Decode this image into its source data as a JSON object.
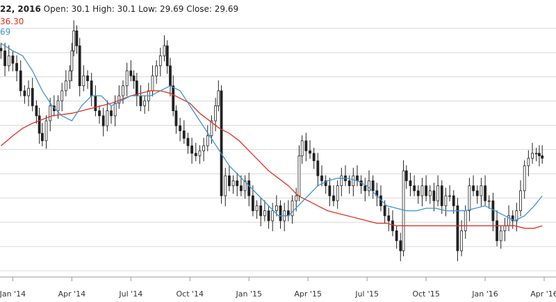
{
  "header": {
    "date_fragment": "22, 2016",
    "open_label": "Open:",
    "open": "30.1",
    "high_label": "High:",
    "high": "30.1",
    "low_label": "Low:",
    "low": "29.69",
    "close_label": "Close:",
    "close": "29.69"
  },
  "ma_labels": {
    "long": "36.30",
    "short": "69"
  },
  "colors": {
    "long_ma": "#e0301e",
    "short_ma": "#3b93d1",
    "candle": "#222222",
    "grid": "#d8d8d8"
  },
  "chart_data": {
    "type": "candlestick",
    "x_tick_labels": [
      "Jan '14",
      "Apr '14",
      "Jul '14",
      "Oct '14",
      "Jan '15",
      "Apr '15",
      "Jul '15",
      "Oct '15",
      "Jan '16",
      "Apr '16"
    ],
    "x_tick_months": [
      0,
      3,
      6,
      9,
      12,
      15,
      18,
      21,
      24,
      27
    ],
    "x_range_months": [
      -0.65,
      27.6
    ],
    "y_range": [
      0,
      100
    ],
    "grid": true,
    "close_series": [
      [
        -0.6,
        88
      ],
      [
        -0.4,
        82
      ],
      [
        -0.2,
        86
      ],
      [
        0.0,
        83
      ],
      [
        0.2,
        80
      ],
      [
        0.4,
        72
      ],
      [
        0.6,
        70
      ],
      [
        0.8,
        73
      ],
      [
        1.0,
        66
      ],
      [
        1.2,
        62
      ],
      [
        1.35,
        55
      ],
      [
        1.5,
        52
      ],
      [
        1.7,
        60
      ],
      [
        1.9,
        66
      ],
      [
        2.1,
        64
      ],
      [
        2.3,
        68
      ],
      [
        2.5,
        72
      ],
      [
        2.7,
        76
      ],
      [
        2.9,
        80
      ],
      [
        3.0,
        88
      ],
      [
        3.1,
        96
      ],
      [
        3.25,
        90
      ],
      [
        3.4,
        74
      ],
      [
        3.6,
        78
      ],
      [
        3.8,
        76
      ],
      [
        4.0,
        70
      ],
      [
        4.2,
        64
      ],
      [
        4.4,
        62
      ],
      [
        4.6,
        58
      ],
      [
        4.8,
        64
      ],
      [
        5.0,
        62
      ],
      [
        5.2,
        67
      ],
      [
        5.4,
        70
      ],
      [
        5.6,
        74
      ],
      [
        5.8,
        80
      ],
      [
        6.0,
        78
      ],
      [
        6.15,
        76
      ],
      [
        6.3,
        70
      ],
      [
        6.5,
        66
      ],
      [
        6.7,
        68
      ],
      [
        6.9,
        72
      ],
      [
        7.1,
        78
      ],
      [
        7.3,
        82
      ],
      [
        7.5,
        86
      ],
      [
        7.7,
        90
      ],
      [
        7.85,
        82
      ],
      [
        8.0,
        74
      ],
      [
        8.15,
        64
      ],
      [
        8.3,
        58
      ],
      [
        8.5,
        56
      ],
      [
        8.7,
        53
      ],
      [
        8.9,
        50
      ],
      [
        9.1,
        47
      ],
      [
        9.3,
        46
      ],
      [
        9.5,
        48
      ],
      [
        9.7,
        50
      ],
      [
        9.9,
        54
      ],
      [
        10.1,
        60
      ],
      [
        10.3,
        66
      ],
      [
        10.45,
        72
      ],
      [
        10.6,
        30
      ],
      [
        10.8,
        38
      ],
      [
        11.0,
        34
      ],
      [
        11.2,
        36
      ],
      [
        11.4,
        34
      ],
      [
        11.6,
        32
      ],
      [
        11.8,
        36
      ],
      [
        12.0,
        30
      ],
      [
        12.2,
        24
      ],
      [
        12.4,
        26
      ],
      [
        12.6,
        22
      ],
      [
        12.8,
        24
      ],
      [
        13.0,
        20
      ],
      [
        13.2,
        24
      ],
      [
        13.4,
        26
      ],
      [
        13.6,
        20
      ],
      [
        13.8,
        24
      ],
      [
        14.0,
        22
      ],
      [
        14.2,
        28
      ],
      [
        14.4,
        30
      ],
      [
        14.55,
        46
      ],
      [
        14.7,
        52
      ],
      [
        14.9,
        48
      ],
      [
        15.1,
        47
      ],
      [
        15.3,
        44
      ],
      [
        15.5,
        38
      ],
      [
        15.7,
        36
      ],
      [
        15.9,
        34
      ],
      [
        16.1,
        30
      ],
      [
        16.3,
        28
      ],
      [
        16.5,
        34
      ],
      [
        16.7,
        38
      ],
      [
        16.9,
        36
      ],
      [
        17.1,
        34
      ],
      [
        17.3,
        38
      ],
      [
        17.5,
        36
      ],
      [
        17.7,
        34
      ],
      [
        17.9,
        32
      ],
      [
        18.1,
        36
      ],
      [
        18.3,
        32
      ],
      [
        18.5,
        30
      ],
      [
        18.7,
        26
      ],
      [
        18.9,
        22
      ],
      [
        19.1,
        20
      ],
      [
        19.3,
        16
      ],
      [
        19.5,
        12
      ],
      [
        19.7,
        8
      ],
      [
        19.85,
        40
      ],
      [
        20.0,
        36
      ],
      [
        20.2,
        34
      ],
      [
        20.4,
        32
      ],
      [
        20.6,
        30
      ],
      [
        20.8,
        34
      ],
      [
        21.0,
        30
      ],
      [
        21.2,
        32
      ],
      [
        21.4,
        28
      ],
      [
        21.6,
        34
      ],
      [
        21.8,
        26
      ],
      [
        22.0,
        30
      ],
      [
        22.2,
        30
      ],
      [
        22.4,
        26
      ],
      [
        22.6,
        8
      ],
      [
        22.8,
        16
      ],
      [
        23.0,
        24
      ],
      [
        23.2,
        34
      ],
      [
        23.4,
        32
      ],
      [
        23.6,
        30
      ],
      [
        23.8,
        34
      ],
      [
        24.0,
        28
      ],
      [
        24.2,
        28
      ],
      [
        24.4,
        20
      ],
      [
        24.6,
        12
      ],
      [
        24.8,
        16
      ],
      [
        25.0,
        18
      ],
      [
        25.2,
        22
      ],
      [
        25.4,
        20
      ],
      [
        25.6,
        24
      ],
      [
        25.8,
        32
      ],
      [
        26.0,
        42
      ],
      [
        26.2,
        45
      ],
      [
        26.4,
        47
      ],
      [
        26.6,
        47
      ],
      [
        26.75,
        46
      ],
      [
        26.9,
        45
      ]
    ],
    "short_ma": [
      [
        -0.6,
        91
      ],
      [
        0.0,
        88
      ],
      [
        0.5,
        86
      ],
      [
        1.0,
        80
      ],
      [
        1.5,
        72
      ],
      [
        2.0,
        66
      ],
      [
        2.5,
        62
      ],
      [
        3.0,
        60
      ],
      [
        3.5,
        66
      ],
      [
        4.0,
        70
      ],
      [
        4.5,
        70
      ],
      [
        5.0,
        66
      ],
      [
        5.5,
        68
      ],
      [
        6.0,
        70
      ],
      [
        6.5,
        70
      ],
      [
        7.0,
        70
      ],
      [
        7.5,
        72
      ],
      [
        8.0,
        74
      ],
      [
        8.5,
        72
      ],
      [
        9.0,
        66
      ],
      [
        9.5,
        60
      ],
      [
        10.0,
        54
      ],
      [
        10.5,
        48
      ],
      [
        11.0,
        42
      ],
      [
        11.5,
        38
      ],
      [
        12.0,
        34
      ],
      [
        12.5,
        30
      ],
      [
        13.0,
        26
      ],
      [
        13.5,
        22
      ],
      [
        14.0,
        22
      ],
      [
        14.5,
        26
      ],
      [
        15.0,
        30
      ],
      [
        15.5,
        34
      ],
      [
        16.0,
        36
      ],
      [
        16.5,
        37
      ],
      [
        17.0,
        37
      ],
      [
        17.5,
        36
      ],
      [
        18.0,
        34
      ],
      [
        18.5,
        30
      ],
      [
        19.0,
        26
      ],
      [
        19.5,
        25
      ],
      [
        20.0,
        24
      ],
      [
        20.5,
        24
      ],
      [
        21.0,
        25
      ],
      [
        21.5,
        25
      ],
      [
        22.0,
        24
      ],
      [
        22.5,
        24
      ],
      [
        23.0,
        24
      ],
      [
        23.5,
        25
      ],
      [
        24.0,
        26
      ],
      [
        24.5,
        24
      ],
      [
        25.0,
        22
      ],
      [
        25.5,
        20
      ],
      [
        26.0,
        22
      ],
      [
        26.5,
        26
      ],
      [
        26.9,
        30
      ]
    ],
    "long_ma": [
      [
        -0.6,
        50
      ],
      [
        0.0,
        54
      ],
      [
        0.5,
        57
      ],
      [
        1.0,
        59
      ],
      [
        2.0,
        62
      ],
      [
        3.0,
        63
      ],
      [
        4.0,
        65
      ],
      [
        5.0,
        67
      ],
      [
        6.0,
        70
      ],
      [
        7.0,
        72
      ],
      [
        7.5,
        72
      ],
      [
        8.0,
        71
      ],
      [
        8.5,
        69
      ],
      [
        9.0,
        67
      ],
      [
        9.5,
        63
      ],
      [
        10.0,
        60
      ],
      [
        10.5,
        57
      ],
      [
        11.0,
        55
      ],
      [
        11.5,
        52
      ],
      [
        12.0,
        48
      ],
      [
        12.5,
        44
      ],
      [
        13.0,
        40
      ],
      [
        13.5,
        37
      ],
      [
        14.0,
        34
      ],
      [
        14.5,
        30
      ],
      [
        15.0,
        28
      ],
      [
        15.5,
        26
      ],
      [
        16.0,
        24
      ],
      [
        16.5,
        23
      ],
      [
        17.0,
        22
      ],
      [
        17.5,
        21
      ],
      [
        18.0,
        20
      ],
      [
        18.5,
        19
      ],
      [
        19.0,
        19
      ],
      [
        19.5,
        18
      ],
      [
        20.0,
        18
      ],
      [
        20.5,
        18
      ],
      [
        21.0,
        18
      ],
      [
        21.5,
        18
      ],
      [
        22.0,
        18
      ],
      [
        22.5,
        18
      ],
      [
        23.0,
        18
      ],
      [
        23.5,
        18
      ],
      [
        24.0,
        18
      ],
      [
        24.5,
        18
      ],
      [
        25.0,
        18
      ],
      [
        25.5,
        18
      ],
      [
        26.0,
        17
      ],
      [
        26.5,
        17
      ],
      [
        26.9,
        18
      ]
    ]
  }
}
